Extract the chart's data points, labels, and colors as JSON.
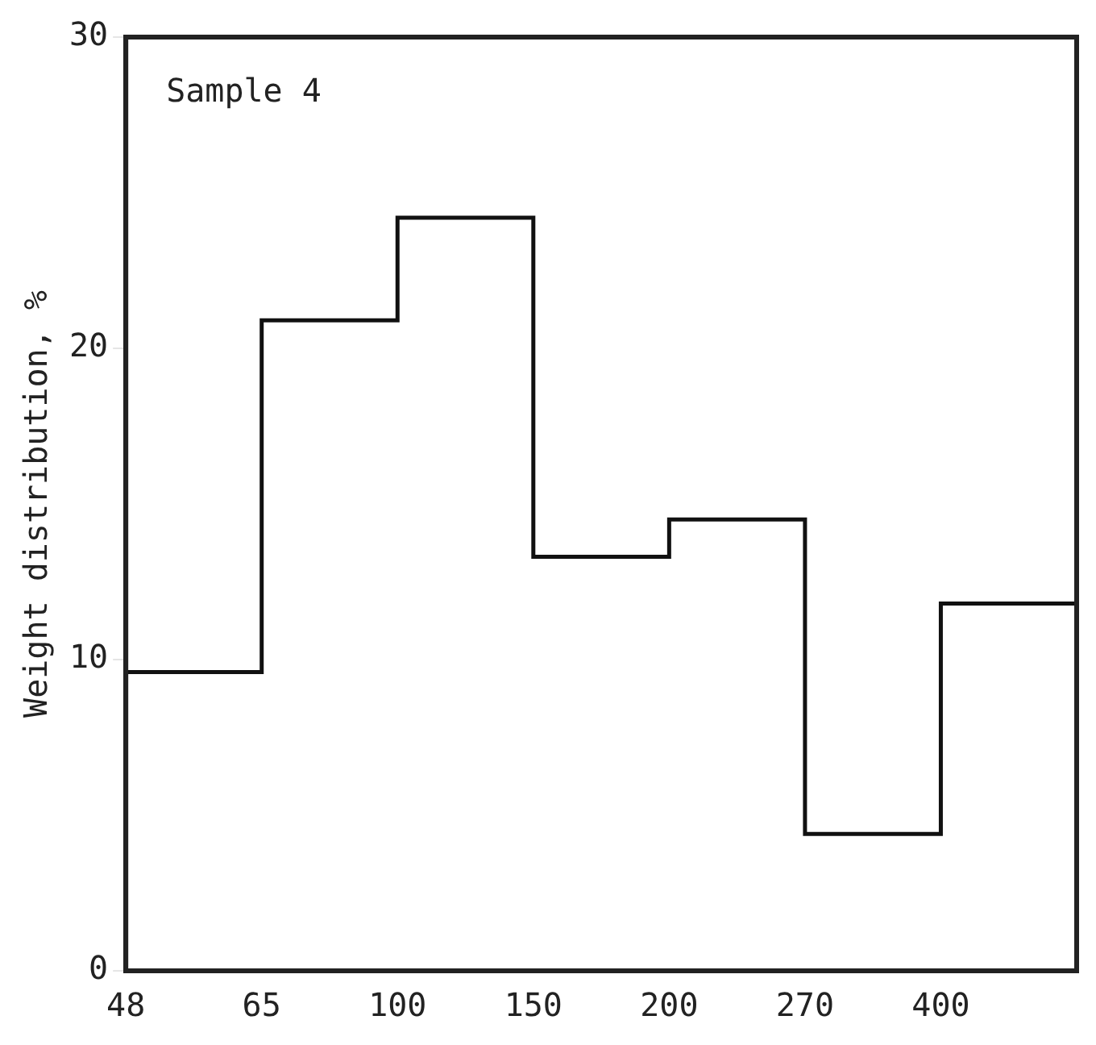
{
  "chart_data": {
    "type": "step",
    "categories": [
      "48",
      "65",
      "100",
      "150",
      "200",
      "270",
      "400",
      null
    ],
    "values": [
      9.6,
      20.9,
      24.2,
      13.3,
      14.5,
      4.4,
      11.8,
      11.8
    ],
    "color": "#111111",
    "ylabel": "Weight distribution, %",
    "ylim": [
      0,
      30
    ],
    "yticks": [
      0,
      10,
      20,
      30
    ],
    "annotations": [
      "Sample 4"
    ],
    "grid": false,
    "legend": false,
    "marker": "none",
    "line_style": "solid"
  }
}
